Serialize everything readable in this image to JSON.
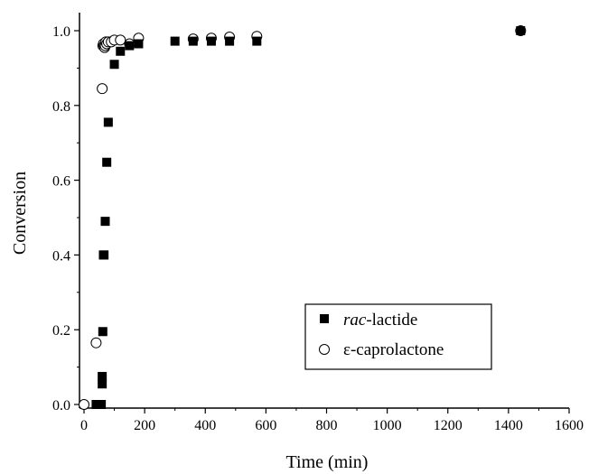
{
  "chart_data": {
    "type": "scatter",
    "xlabel": "Time (min)",
    "ylabel": "Conversion",
    "xlim": [
      0,
      1600
    ],
    "ylim": [
      0,
      1.0
    ],
    "xticks": [
      0,
      200,
      400,
      600,
      800,
      1000,
      1200,
      1400,
      1600
    ],
    "yticks": [
      0.0,
      0.2,
      0.4,
      0.6,
      0.8,
      1.0
    ],
    "xtick_labels": [
      "0",
      "200",
      "400",
      "600",
      "800",
      "1000",
      "1200",
      "1400",
      "1600"
    ],
    "ytick_labels": [
      "0.0",
      "0.2",
      "0.4",
      "0.6",
      "0.8",
      "1.0"
    ],
    "grid": false,
    "legend_position": "bottom-right",
    "series": [
      {
        "name_prefix": "rac",
        "name_suffix": "-lactide",
        "marker": "filled-square",
        "color": "#000000",
        "x": [
          40,
          50,
          57,
          60,
          60,
          62,
          64,
          66,
          70,
          75,
          80,
          100,
          120,
          150,
          180,
          300,
          360,
          420,
          480,
          570,
          1440
        ],
        "y": [
          0.0,
          0.0,
          0.0,
          0.055,
          0.075,
          0.195,
          0.4,
          0.4,
          0.49,
          0.648,
          0.755,
          0.91,
          0.945,
          0.96,
          0.965,
          0.972,
          0.972,
          0.972,
          0.972,
          0.972,
          1.0
        ]
      },
      {
        "name": "ε-caprolactone",
        "marker": "open-circle",
        "color": "#000000",
        "x": [
          0,
          40,
          60,
          62,
          64,
          66,
          68,
          70,
          72,
          75,
          80,
          90,
          100,
          120,
          150,
          180,
          360,
          420,
          480,
          570,
          1440
        ],
        "y": [
          0.0,
          0.165,
          0.845,
          0.96,
          0.965,
          0.96,
          0.955,
          0.96,
          0.97,
          0.965,
          0.97,
          0.97,
          0.975,
          0.975,
          0.965,
          0.98,
          0.978,
          0.98,
          0.983,
          0.985,
          1.0
        ]
      }
    ]
  }
}
